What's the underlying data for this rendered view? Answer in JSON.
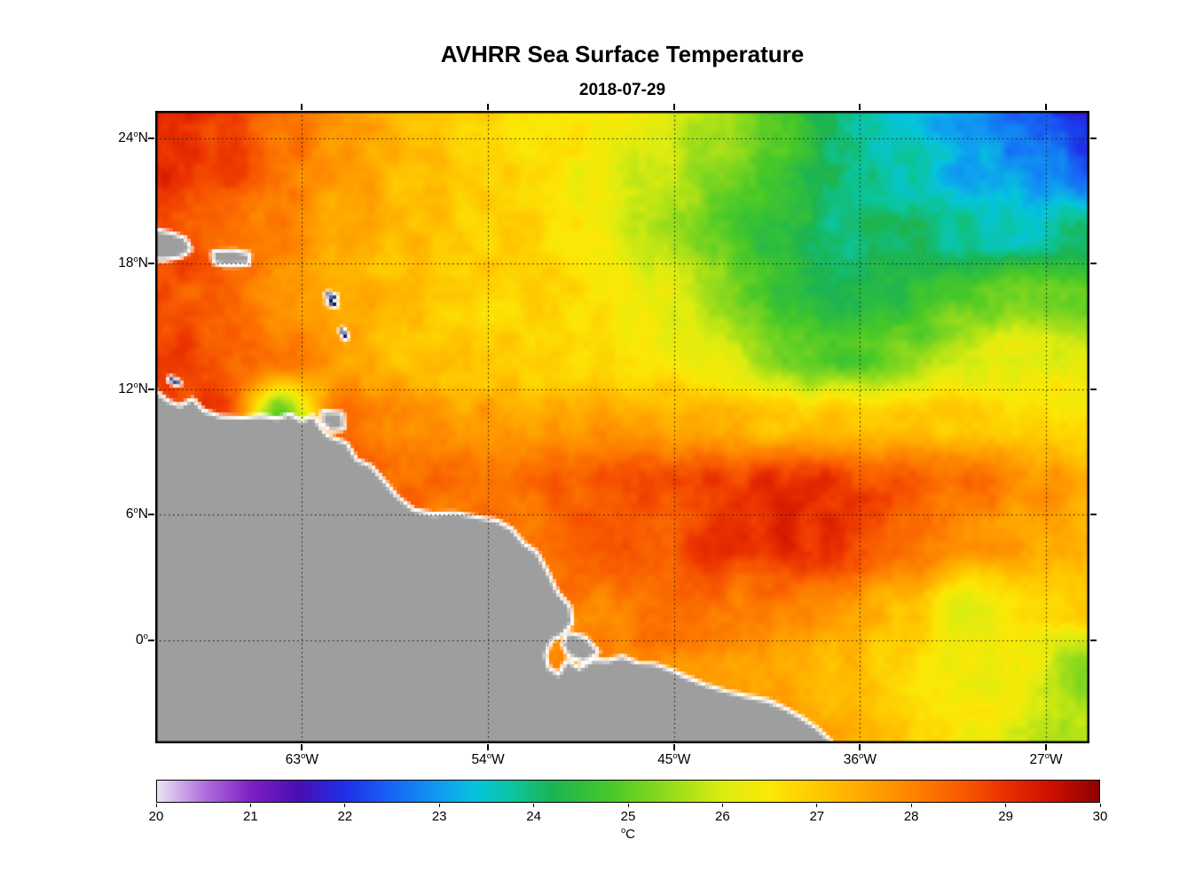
{
  "chart_data": {
    "type": "heatmap",
    "title": "AVHRR Sea Surface Temperature",
    "subtitle": "2018-07-29",
    "lon_range": [
      -70.1,
      -24.9
    ],
    "lat_range": [
      -4.92,
      25.3
    ],
    "x_ticks": [
      {
        "value": -63,
        "label": "63",
        "sup": "o",
        "suffix": "W"
      },
      {
        "value": -54,
        "label": "54",
        "sup": "o",
        "suffix": "W"
      },
      {
        "value": -45,
        "label": "45",
        "sup": "o",
        "suffix": "W"
      },
      {
        "value": -36,
        "label": "36",
        "sup": "o",
        "suffix": "W"
      },
      {
        "value": -27,
        "label": "27",
        "sup": "o",
        "suffix": "W"
      }
    ],
    "y_ticks": [
      {
        "value": 24,
        "label": "24",
        "sup": "o",
        "suffix": "N"
      },
      {
        "value": 18,
        "label": "18",
        "sup": "o",
        "suffix": "N"
      },
      {
        "value": 12,
        "label": "12",
        "sup": "o",
        "suffix": "N"
      },
      {
        "value": 6,
        "label": "6",
        "sup": "o",
        "suffix": "N"
      },
      {
        "value": 0,
        "label": "0",
        "sup": "o",
        "suffix": ""
      }
    ],
    "colorbar": {
      "min": 20,
      "max": 30,
      "ticks": [
        20,
        21,
        22,
        23,
        24,
        25,
        26,
        27,
        28,
        29,
        30
      ],
      "unit_sup": "o",
      "unit": "C",
      "colormap": [
        [
          20.0,
          "#EAE3F3"
        ],
        [
          20.5,
          "#B070DC"
        ],
        [
          21.0,
          "#7D1FC4"
        ],
        [
          21.5,
          "#4A0DB4"
        ],
        [
          22.0,
          "#1E30E8"
        ],
        [
          22.5,
          "#1766F5"
        ],
        [
          23.0,
          "#0F9CF0"
        ],
        [
          23.4,
          "#06C4DC"
        ],
        [
          23.8,
          "#0CC49A"
        ],
        [
          24.2,
          "#1CB452"
        ],
        [
          24.8,
          "#46C829"
        ],
        [
          25.4,
          "#8FDA1C"
        ],
        [
          26.0,
          "#DCEC10"
        ],
        [
          26.5,
          "#FBE806"
        ],
        [
          27.0,
          "#FFC900"
        ],
        [
          27.6,
          "#FFA000"
        ],
        [
          28.1,
          "#FD7D00"
        ],
        [
          28.6,
          "#F75500"
        ],
        [
          29.0,
          "#E93000"
        ],
        [
          29.5,
          "#CC0F00"
        ],
        [
          30.0,
          "#8F0000"
        ]
      ]
    },
    "sst_grid": {
      "lons": [
        -70,
        -67,
        -64,
        -61,
        -58,
        -55,
        -52,
        -49,
        -46,
        -43,
        -40,
        -37,
        -34,
        -31,
        -28,
        -25
      ],
      "lats": [
        25.5,
        22.5,
        19.5,
        16.5,
        13.5,
        10.5,
        7.5,
        4.5,
        1.5,
        -1.5,
        -4.5
      ],
      "values_c": [
        [
          29.3,
          28.9,
          28.3,
          27.7,
          27.2,
          26.9,
          26.7,
          26.5,
          26.2,
          25.6,
          24.9,
          24.1,
          23.5,
          23.0,
          22.5,
          21.6
        ],
        [
          29.1,
          28.8,
          28.2,
          27.6,
          27.2,
          26.9,
          26.7,
          26.4,
          26.0,
          25.4,
          24.7,
          24.1,
          23.6,
          23.2,
          22.9,
          22.4
        ],
        [
          28.8,
          28.5,
          28.0,
          27.5,
          27.2,
          27.0,
          26.8,
          26.4,
          25.8,
          25.1,
          24.4,
          24.0,
          24.1,
          23.8,
          23.6,
          24.1
        ],
        [
          28.7,
          28.4,
          27.9,
          27.4,
          27.1,
          26.9,
          26.8,
          26.6,
          26.2,
          25.5,
          24.6,
          24.1,
          24.4,
          24.9,
          25.1,
          25.0
        ],
        [
          28.9,
          28.6,
          28.1,
          27.5,
          27.1,
          26.9,
          26.8,
          26.7,
          26.5,
          26.1,
          25.3,
          24.8,
          25.3,
          25.9,
          26.2,
          26.1
        ],
        [
          28.8,
          28.9,
          24.9,
          28.2,
          28.0,
          27.6,
          27.5,
          27.7,
          27.5,
          27.3,
          27.0,
          27.2,
          27.1,
          26.9,
          26.9,
          26.7
        ],
        [
          28.5,
          28.5,
          28.4,
          28.6,
          28.4,
          28.2,
          28.3,
          28.5,
          28.6,
          28.8,
          29.1,
          28.9,
          28.5,
          28.2,
          27.8,
          27.4
        ],
        [
          28.2,
          28.2,
          28.2,
          28.3,
          28.3,
          28.2,
          28.2,
          28.4,
          28.6,
          28.9,
          29.1,
          29.0,
          28.4,
          27.9,
          27.6,
          27.2
        ],
        [
          28.0,
          28.0,
          28.0,
          28.0,
          28.0,
          28.0,
          28.0,
          28.1,
          28.2,
          28.2,
          28.0,
          27.6,
          27.2,
          25.9,
          26.5,
          26.8
        ],
        [
          27.8,
          27.8,
          27.8,
          27.8,
          27.8,
          27.8,
          27.8,
          27.9,
          28.0,
          27.8,
          27.6,
          27.2,
          26.8,
          26.4,
          26.3,
          25.4
        ],
        [
          27.6,
          27.6,
          27.6,
          27.6,
          27.6,
          27.6,
          27.6,
          27.6,
          27.7,
          27.7,
          27.5,
          27.4,
          26.9,
          26.5,
          26.0,
          25.6
        ]
      ]
    },
    "land": {
      "fill": "#9E9E9E",
      "outline": "#FFFFFF",
      "polygons": [
        {
          "name": "south-america",
          "points": [
            [
              -71.0,
              12.0
            ],
            [
              -70.0,
              11.75
            ],
            [
              -69.5,
              11.35
            ],
            [
              -68.9,
              11.1
            ],
            [
              -68.3,
              11.45
            ],
            [
              -67.8,
              10.9
            ],
            [
              -66.9,
              10.6
            ],
            [
              -65.8,
              10.55
            ],
            [
              -65.0,
              10.65
            ],
            [
              -64.2,
              10.5
            ],
            [
              -63.6,
              10.7
            ],
            [
              -63.0,
              10.4
            ],
            [
              -62.5,
              10.65
            ],
            [
              -62.1,
              10.05
            ],
            [
              -61.8,
              9.7
            ],
            [
              -60.9,
              9.35
            ],
            [
              -60.4,
              8.55
            ],
            [
              -59.7,
              8.25
            ],
            [
              -59.0,
              7.45
            ],
            [
              -58.5,
              6.85
            ],
            [
              -57.6,
              6.15
            ],
            [
              -56.7,
              5.95
            ],
            [
              -55.6,
              6.0
            ],
            [
              -54.5,
              5.8
            ],
            [
              -53.6,
              5.65
            ],
            [
              -52.9,
              5.25
            ],
            [
              -52.3,
              4.55
            ],
            [
              -51.7,
              4.15
            ],
            [
              -51.2,
              3.25
            ],
            [
              -50.7,
              2.25
            ],
            [
              -50.1,
              1.55
            ],
            [
              -50.0,
              0.9
            ],
            [
              -50.45,
              0.35
            ],
            [
              -51.0,
              0.05
            ],
            [
              -51.3,
              -0.7
            ],
            [
              -51.15,
              -1.35
            ],
            [
              -50.55,
              -1.75
            ],
            [
              -50.15,
              -1.05
            ],
            [
              -49.6,
              -1.45
            ],
            [
              -48.9,
              -1.0
            ],
            [
              -48.2,
              -1.05
            ],
            [
              -47.5,
              -0.85
            ],
            [
              -46.8,
              -1.15
            ],
            [
              -46.0,
              -1.2
            ],
            [
              -45.2,
              -1.5
            ],
            [
              -44.4,
              -1.85
            ],
            [
              -43.5,
              -2.2
            ],
            [
              -42.5,
              -2.5
            ],
            [
              -41.5,
              -2.75
            ],
            [
              -40.5,
              -2.95
            ],
            [
              -39.6,
              -3.35
            ],
            [
              -38.8,
              -3.8
            ],
            [
              -38.1,
              -4.3
            ],
            [
              -37.5,
              -4.85
            ],
            [
              -37.2,
              -5.6
            ],
            [
              -71.0,
              -5.6
            ]
          ]
        },
        {
          "name": "marajo-island",
          "points": [
            [
              -50.1,
              0.3
            ],
            [
              -49.3,
              0.05
            ],
            [
              -48.75,
              -0.55
            ],
            [
              -49.35,
              -0.95
            ],
            [
              -50.05,
              -0.7
            ],
            [
              -50.3,
              -0.2
            ]
          ]
        },
        {
          "name": "hispaniola",
          "points": [
            [
              -70.8,
              19.7
            ],
            [
              -69.4,
              19.4
            ],
            [
              -68.7,
              19.15
            ],
            [
              -68.45,
              18.7
            ],
            [
              -68.9,
              18.4
            ],
            [
              -69.7,
              18.25
            ],
            [
              -70.8,
              18.4
            ]
          ]
        },
        {
          "name": "puerto-rico",
          "points": [
            [
              -67.25,
              18.5
            ],
            [
              -66.3,
              18.55
            ],
            [
              -65.6,
              18.4
            ],
            [
              -65.65,
              18.05
            ],
            [
              -66.7,
              18.0
            ],
            [
              -67.2,
              18.1
            ]
          ]
        },
        {
          "name": "trinidad",
          "points": [
            [
              -61.95,
              10.85
            ],
            [
              -61.1,
              10.8
            ],
            [
              -61.05,
              10.15
            ],
            [
              -61.6,
              10.1
            ],
            [
              -61.95,
              10.45
            ]
          ]
        }
      ]
    },
    "island_mark_color": "#0B1E63",
    "island_marks": [
      {
        "name": "guadeloupe",
        "points": [
          [
            -61.75,
            16.5
          ],
          [
            -61.4,
            16.4
          ],
          [
            -61.7,
            16.15
          ],
          [
            -61.4,
            16.05
          ]
        ]
      },
      {
        "name": "martinique",
        "points": [
          [
            -61.05,
            14.8
          ],
          [
            -60.9,
            14.5
          ]
        ]
      },
      {
        "name": "curacao-aruba",
        "points": [
          [
            -69.35,
            12.45
          ],
          [
            -69.0,
            12.3
          ]
        ]
      }
    ]
  }
}
